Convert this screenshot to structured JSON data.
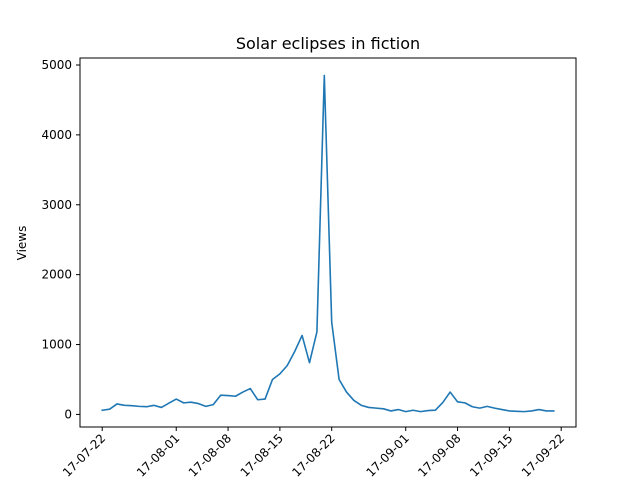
{
  "chart_data": {
    "type": "line",
    "title": "Solar eclipses in fiction",
    "xlabel": "",
    "ylabel": "Views",
    "x_axis_kind": "date",
    "x_tick_labels": [
      "2017-07-22",
      "2017-08-01",
      "2017-08-08",
      "2017-08-15",
      "2017-08-22",
      "2017-09-01",
      "2017-09-08",
      "2017-09-15",
      "2017-09-22"
    ],
    "x_tick_label_display": [
      "17-07-22",
      "17-08-01",
      "17-08-08",
      "17-08-15",
      "17-08-22",
      "17-09-01",
      "17-09-08",
      "17-09-15",
      "17-09-22"
    ],
    "y_ticks": [
      0,
      1000,
      2000,
      3000,
      4000,
      5000
    ],
    "xlim": [
      "2017-07-19",
      "2017-09-24"
    ],
    "ylim": [
      -180,
      5100
    ],
    "grid": false,
    "line_color": "#1f77b4",
    "series": [
      {
        "x": [
          "2017-07-22",
          "2017-07-23",
          "2017-07-24",
          "2017-07-25",
          "2017-07-26",
          "2017-07-27",
          "2017-07-28",
          "2017-07-29",
          "2017-07-30",
          "2017-07-31",
          "2017-08-01",
          "2017-08-02",
          "2017-08-03",
          "2017-08-04",
          "2017-08-05",
          "2017-08-06",
          "2017-08-07",
          "2017-08-08",
          "2017-08-09",
          "2017-08-10",
          "2017-08-11",
          "2017-08-12",
          "2017-08-13",
          "2017-08-14",
          "2017-08-15",
          "2017-08-16",
          "2017-08-17",
          "2017-08-18",
          "2017-08-19",
          "2017-08-20",
          "2017-08-21",
          "2017-08-22",
          "2017-08-23",
          "2017-08-24",
          "2017-08-25",
          "2017-08-26",
          "2017-08-27",
          "2017-08-28",
          "2017-08-29",
          "2017-08-30",
          "2017-08-31",
          "2017-09-01",
          "2017-09-02",
          "2017-09-03",
          "2017-09-04",
          "2017-09-05",
          "2017-09-06",
          "2017-09-07",
          "2017-09-08",
          "2017-09-09",
          "2017-09-10",
          "2017-09-11",
          "2017-09-12",
          "2017-09-13",
          "2017-09-14",
          "2017-09-15",
          "2017-09-16",
          "2017-09-17",
          "2017-09-18",
          "2017-09-19",
          "2017-09-20",
          "2017-09-21"
        ],
        "y": [
          60,
          75,
          150,
          130,
          125,
          115,
          110,
          130,
          100,
          160,
          220,
          165,
          175,
          155,
          115,
          140,
          275,
          270,
          260,
          320,
          370,
          210,
          220,
          500,
          580,
          700,
          900,
          1130,
          740,
          1180,
          4850,
          1320,
          500,
          320,
          200,
          130,
          100,
          90,
          80,
          50,
          70,
          40,
          60,
          40,
          55,
          60,
          170,
          320,
          180,
          165,
          110,
          90,
          115,
          90,
          70,
          50,
          45,
          40,
          50,
          70,
          50,
          50
        ]
      }
    ]
  }
}
